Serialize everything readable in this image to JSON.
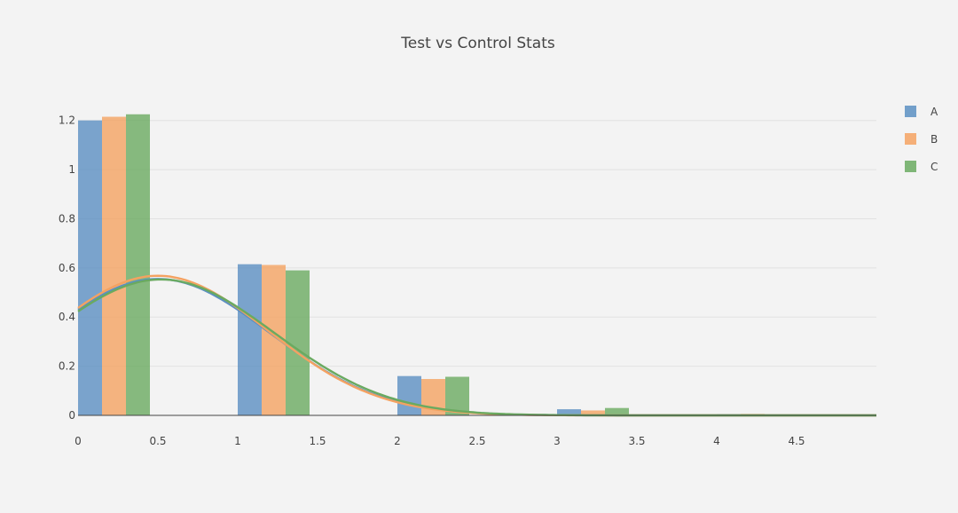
{
  "chart_data": {
    "type": "bar",
    "title": "Test vs Control Stats",
    "xlim": [
      0,
      5
    ],
    "ylim": [
      0,
      1.3
    ],
    "x_ticks": [
      0,
      0.5,
      1,
      1.5,
      2,
      2.5,
      3,
      3.5,
      4,
      4.5
    ],
    "x_tick_labels": [
      "0",
      "0.5",
      "1",
      "1.5",
      "2",
      "2.5",
      "3",
      "3.5",
      "4",
      "4.5"
    ],
    "y_ticks": [
      0,
      0.2,
      0.4,
      0.6,
      0.8,
      1,
      1.2
    ],
    "y_tick_labels": [
      "0",
      "0.2",
      "0.4",
      "0.6",
      "0.8",
      "1",
      "1.2"
    ],
    "grid": true,
    "legend_position": "top-right",
    "bar_groups": [
      0,
      1,
      2,
      3,
      4
    ],
    "series": [
      {
        "name": "A",
        "color": "#5b8fc2",
        "bar_values": [
          1.2,
          0.615,
          0.16,
          0.025,
          0.005
        ],
        "curve": {
          "type": "gaussian",
          "mean": 0.5,
          "sigma": 0.7,
          "peak": 0.555
        }
      },
      {
        "name": "B",
        "color": "#f4a261",
        "bar_values": [
          1.215,
          0.612,
          0.148,
          0.02,
          0.006
        ],
        "curve": {
          "type": "gaussian",
          "mean": 0.5,
          "sigma": 0.69,
          "peak": 0.568
        }
      },
      {
        "name": "C",
        "color": "#6aaa60",
        "bar_values": [
          1.225,
          0.59,
          0.157,
          0.03,
          0.002
        ],
        "curve": {
          "type": "gaussian",
          "mean": 0.52,
          "sigma": 0.71,
          "peak": 0.553
        }
      }
    ]
  }
}
